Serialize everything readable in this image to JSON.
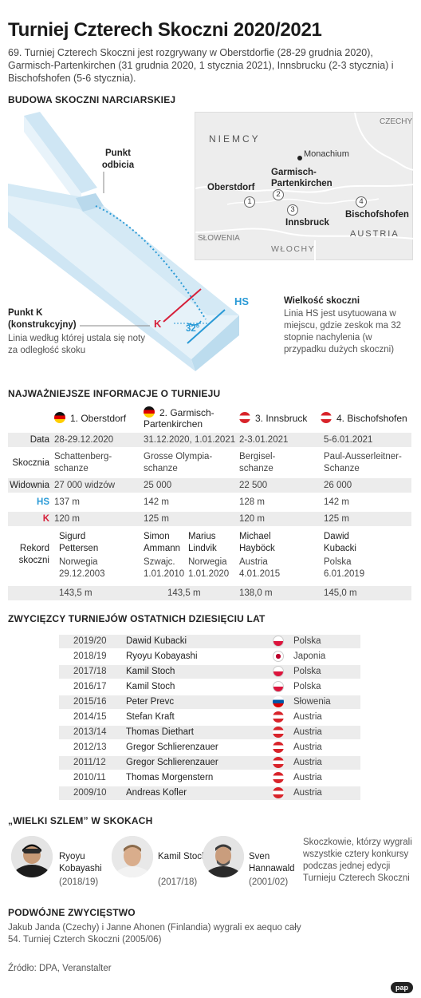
{
  "title": "Turniej Czterech Skoczni 2020/2021",
  "intro": "69. Turniej Czterech Skoczni jest rozgrywany w Oberstdorfie (28-29 grudnia 2020), Garmisch-Partenkirchen (31 grudnia 2020, 1 stycznia 2021), Innsbrucku (2-3 stycznia) i Bischofshofen (5-6 stycznia).",
  "hill_section": {
    "heading": "BUDOWA SKOCZNI NARCIARSKIEJ",
    "takeoff_label": "Punkt odbicia",
    "kpoint_title": "Punkt K (konstrukcyjny)",
    "kpoint_desc": "Linia według której ustala się noty za odległość skoku",
    "k_marker": "K",
    "hs_marker": "HS",
    "angle": "32°",
    "hs_title": "Wielkość skoczni",
    "hs_desc": "Linia HS jest usytuowana w miejscu, gdzie zeskok ma 32 stopnie nachylenia (w przypadku dużych skoczni)"
  },
  "map": {
    "countries": {
      "germany": "NIEMCY",
      "czech": "CZECHY",
      "austria": "AUSTRIA",
      "slovenia": "SŁOWENIA",
      "italy": "WŁOCHY"
    },
    "munich": "Monachium",
    "places": [
      {
        "num": "1",
        "name": "Oberstdorf"
      },
      {
        "num": "2",
        "name": "Garmisch-Partenkirchen"
      },
      {
        "num": "3",
        "name": "Innsbruck"
      },
      {
        "num": "4",
        "name": "Bischofshofen"
      }
    ]
  },
  "info": {
    "heading": "NAJWAŻNIEJSZE INFORMACJE O TURNIEJU",
    "columns": [
      "1. Oberstdorf",
      "2. Garmisch-Partenkirchen",
      "3. Innsbruck",
      "4. Bischofshofen"
    ],
    "column_flags": [
      "de",
      "de",
      "at",
      "at"
    ],
    "row_labels": {
      "date": "Data",
      "venue": "Skocznia",
      "audience": "Widownia",
      "hs": "HS",
      "k": "K",
      "record": "Rekord skoczni"
    },
    "dates": [
      "28-29.12.2020",
      "31.12.2020, 1.01.2021",
      "2-3.01.2021",
      "5-6.01.2021"
    ],
    "venues": [
      "Schattenberg-schanze",
      "Grosse Olympia-schanze",
      "Bergisel-schanze",
      "Paul-Ausserleitner-Schanze"
    ],
    "audience": [
      "27 000 widzów",
      "25 000",
      "22 500",
      "26 000"
    ],
    "hs": [
      "137 m",
      "142 m",
      "128 m",
      "142 m"
    ],
    "k": [
      "120 m",
      "125 m",
      "120 m",
      "125 m"
    ],
    "records": [
      {
        "name": "Sigurd Pettersen",
        "country": "Norwegia",
        "date": "29.12.2003",
        "distance": "143,5 m"
      },
      {
        "name": "Simon Ammann",
        "country": "Szwajc.",
        "date": "1.01.2010",
        "name2": "Marius Lindvik",
        "country2": "Norwegia",
        "date2": "1.01.2020",
        "distance": "143,5 m"
      },
      {
        "name": "Michael Hayböck",
        "country": "Austria",
        "date": "4.01.2015",
        "distance": "138,0 m"
      },
      {
        "name": "Dawid Kubacki",
        "country": "Polska",
        "date": "6.01.2019",
        "distance": "145,0 m"
      }
    ]
  },
  "winners": {
    "heading": "ZWYCIĘZCY TURNIEJÓW OSTATNICH DZIESIĘCIU LAT",
    "rows": [
      {
        "season": "2019/20",
        "name": "Dawid Kubacki",
        "country": "Polska",
        "flag": "pl"
      },
      {
        "season": "2018/19",
        "name": "Ryoyu Kobayashi",
        "country": "Japonia",
        "flag": "jp"
      },
      {
        "season": "2017/18",
        "name": "Kamil Stoch",
        "country": "Polska",
        "flag": "pl"
      },
      {
        "season": "2016/17",
        "name": "Kamil Stoch",
        "country": "Polska",
        "flag": "pl"
      },
      {
        "season": "2015/16",
        "name": "Peter Prevc",
        "country": "Słowenia",
        "flag": "si"
      },
      {
        "season": "2014/15",
        "name": "Stefan Kraft",
        "country": "Austria",
        "flag": "at"
      },
      {
        "season": "2013/14",
        "name": "Thomas Diethart",
        "country": "Austria",
        "flag": "at"
      },
      {
        "season": "2012/13",
        "name": "Gregor Schlierenzauer",
        "country": "Austria",
        "flag": "at"
      },
      {
        "season": "2011/12",
        "name": "Gregor Schlierenzauer",
        "country": "Austria",
        "flag": "at"
      },
      {
        "season": "2010/11",
        "name": "Thomas Morgenstern",
        "country": "Austria",
        "flag": "at"
      },
      {
        "season": "2009/10",
        "name": "Andreas Kofler",
        "country": "Austria",
        "flag": "at"
      }
    ]
  },
  "grand_slam": {
    "heading": "„WIELKI SZLEM” W SKOKACH",
    "jumpers": [
      {
        "name": "Ryoyu Kobayashi",
        "season": "(2018/19)"
      },
      {
        "name": "Kamil Stoch",
        "season": "(2017/18)"
      },
      {
        "name": "Sven Hannawald",
        "season": "(2001/02)"
      }
    ],
    "note": "Skoczkowie, którzy wygrali wszystkie cztery konkursy podczas jednej edycji Turnieju Czterech Skoczni"
  },
  "double_win": {
    "heading": "PODWÓJNE ZWYCIĘSTWO",
    "text": "Jakub Janda (Czechy) i Janne Ahonen (Finlandia) wygrali ex aequo cały 54. Turniej Czterch Skoczni (2005/06)"
  },
  "source": "Źródło: DPA, Veranstalter",
  "logo": "pap",
  "colors": {
    "k_red": "#d6203a",
    "hs_blue": "#2a9ad6",
    "row_gray": "#ececec"
  }
}
